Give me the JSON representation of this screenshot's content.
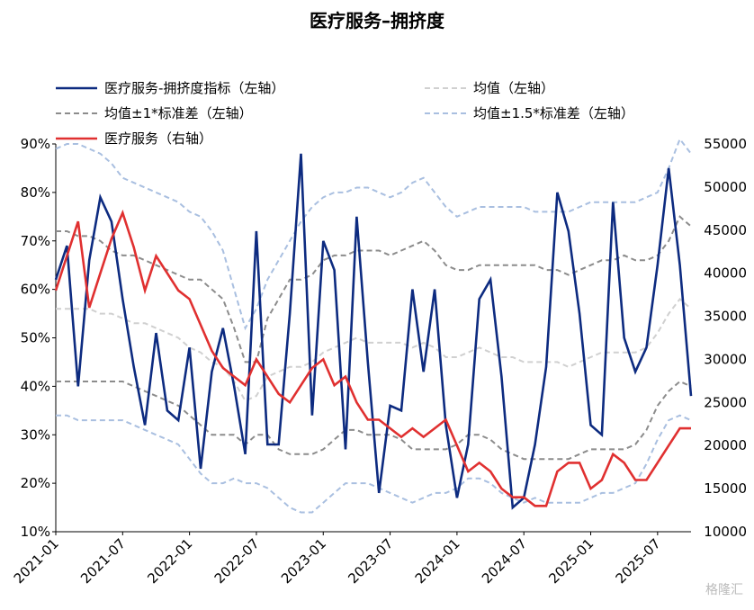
{
  "chart_data": {
    "type": "line",
    "title": "医疗服务–拥挤度",
    "watermark": "格隆汇",
    "categories": [
      "2021-01",
      null,
      null,
      null,
      null,
      null,
      "2021-07",
      null,
      null,
      null,
      null,
      null,
      "2022-01",
      null,
      null,
      null,
      null,
      null,
      "2022-07",
      null,
      null,
      null,
      null,
      null,
      "2023-01",
      null,
      null,
      null,
      null,
      null,
      "2023-07",
      null,
      null,
      null,
      null,
      null,
      "2024-01",
      null,
      null,
      null,
      null,
      null,
      "2024-07",
      null,
      null,
      null,
      null,
      null,
      "2025-01",
      null,
      null,
      null,
      null,
      null,
      "2025-07",
      null,
      null,
      null
    ],
    "series": [
      {
        "name": "医疗服务-拥挤度指标（左轴）",
        "color": "#0d2b80",
        "dash": false,
        "axis": "y",
        "values": [
          62,
          69,
          40,
          66,
          79,
          74,
          58,
          44,
          32,
          51,
          35,
          33,
          48,
          23,
          43,
          52,
          40,
          26,
          72,
          28,
          28,
          55,
          88,
          34,
          70,
          64,
          27,
          75,
          45,
          18,
          36,
          35,
          60,
          43,
          60,
          32,
          17,
          28,
          58,
          62,
          42,
          15,
          17,
          28,
          44,
          80,
          72,
          55,
          32,
          30,
          78,
          50,
          43,
          48,
          65,
          85,
          65,
          38
        ]
      },
      {
        "name": "均值（左轴）",
        "color": "#d0d0d0",
        "dash": true,
        "axis": "y",
        "values": [
          56,
          56,
          56,
          56,
          55,
          55,
          54,
          53,
          53,
          52,
          51,
          50,
          48,
          47,
          45,
          44,
          41,
          37,
          38,
          42,
          43,
          44,
          44,
          45,
          47,
          48,
          49,
          50,
          49,
          49,
          49,
          49,
          48,
          49,
          48,
          46,
          46,
          47,
          48,
          47,
          46,
          46,
          45,
          45,
          45,
          45,
          44,
          45,
          46,
          47,
          47,
          47,
          47,
          48,
          51,
          55,
          58,
          56
        ]
      },
      {
        "name": "均值±1*标准差（左轴）",
        "color": "#8c8c8c",
        "dash": true,
        "axis": "y",
        "values": [
          72,
          72,
          71,
          71,
          70,
          68,
          67,
          67,
          66,
          65,
          64,
          63,
          62,
          62,
          60,
          58,
          52,
          45,
          45,
          54,
          58,
          62,
          62,
          63,
          66,
          67,
          67,
          68,
          68,
          68,
          67,
          68,
          69,
          70,
          68,
          65,
          64,
          64,
          65,
          65,
          65,
          65,
          65,
          65,
          64,
          64,
          63,
          64,
          65,
          66,
          66,
          67,
          66,
          66,
          67,
          70,
          75,
          73
        ],
        "values_lower": [
          41,
          41,
          41,
          41,
          41,
          41,
          41,
          40,
          39,
          38,
          37,
          36,
          34,
          32,
          30,
          30,
          30,
          28,
          30,
          30,
          27,
          26,
          26,
          26,
          27,
          29,
          31,
          31,
          30,
          30,
          30,
          29,
          27,
          27,
          27,
          27,
          28,
          30,
          30,
          29,
          27,
          26,
          25,
          25,
          25,
          25,
          25,
          26,
          27,
          27,
          27,
          27,
          28,
          31,
          36,
          39,
          41,
          40
        ]
      },
      {
        "name": "均值±1.5*标准差（左轴）",
        "color": "#a9bfe0",
        "dash": true,
        "axis": "y",
        "values": [
          89,
          90,
          90,
          89,
          88,
          86,
          83,
          82,
          81,
          80,
          79,
          78,
          76,
          75,
          72,
          68,
          60,
          52,
          56,
          62,
          66,
          70,
          74,
          77,
          79,
          80,
          80,
          81,
          81,
          80,
          79,
          80,
          82,
          83,
          80,
          77,
          75,
          76,
          77,
          77,
          77,
          77,
          77,
          76,
          76,
          76,
          76,
          77,
          78,
          78,
          78,
          78,
          78,
          79,
          80,
          85,
          91,
          88
        ],
        "values_lower": [
          34,
          34,
          33,
          33,
          33,
          33,
          33,
          32,
          31,
          30,
          29,
          28,
          25,
          22,
          20,
          20,
          21,
          20,
          20,
          19,
          17,
          15,
          14,
          14,
          16,
          18,
          20,
          20,
          20,
          19,
          18,
          17,
          16,
          17,
          18,
          18,
          19,
          21,
          21,
          20,
          18,
          17,
          16,
          17,
          16,
          16,
          16,
          16,
          17,
          18,
          18,
          19,
          20,
          24,
          29,
          33,
          34,
          33
        ]
      },
      {
        "name": "医疗服务（右轴）",
        "color": "#e03030",
        "dash": false,
        "axis": "y2",
        "values": [
          38000,
          42000,
          46000,
          36000,
          40000,
          44000,
          47000,
          43000,
          38000,
          42000,
          40000,
          38000,
          37000,
          34000,
          31000,
          29000,
          28000,
          27000,
          30000,
          28000,
          26000,
          25000,
          27000,
          29000,
          30000,
          27000,
          28000,
          25000,
          23000,
          23000,
          22000,
          21000,
          22000,
          21000,
          22000,
          23000,
          20000,
          17000,
          18000,
          17000,
          15000,
          14000,
          14000,
          13000,
          13000,
          17000,
          18000,
          18000,
          15000,
          16000,
          19000,
          18000,
          16000,
          16000,
          18000,
          20000,
          22000,
          22000
        ]
      }
    ],
    "ylim": [
      10,
      90
    ],
    "yticks": [
      {
        "value": 10,
        "label": "10%"
      },
      {
        "value": 20,
        "label": "20%"
      },
      {
        "value": 30,
        "label": "30%"
      },
      {
        "value": 40,
        "label": "40%"
      },
      {
        "value": 50,
        "label": "50%"
      },
      {
        "value": 60,
        "label": "60%"
      },
      {
        "value": 70,
        "label": "70%"
      },
      {
        "value": 80,
        "label": "80%"
      },
      {
        "value": 90,
        "label": "90%"
      }
    ],
    "y2lim": [
      10000,
      55000
    ],
    "y2ticks": [
      10000,
      15000,
      20000,
      25000,
      30000,
      35000,
      40000,
      45000,
      50000,
      55000
    ]
  }
}
